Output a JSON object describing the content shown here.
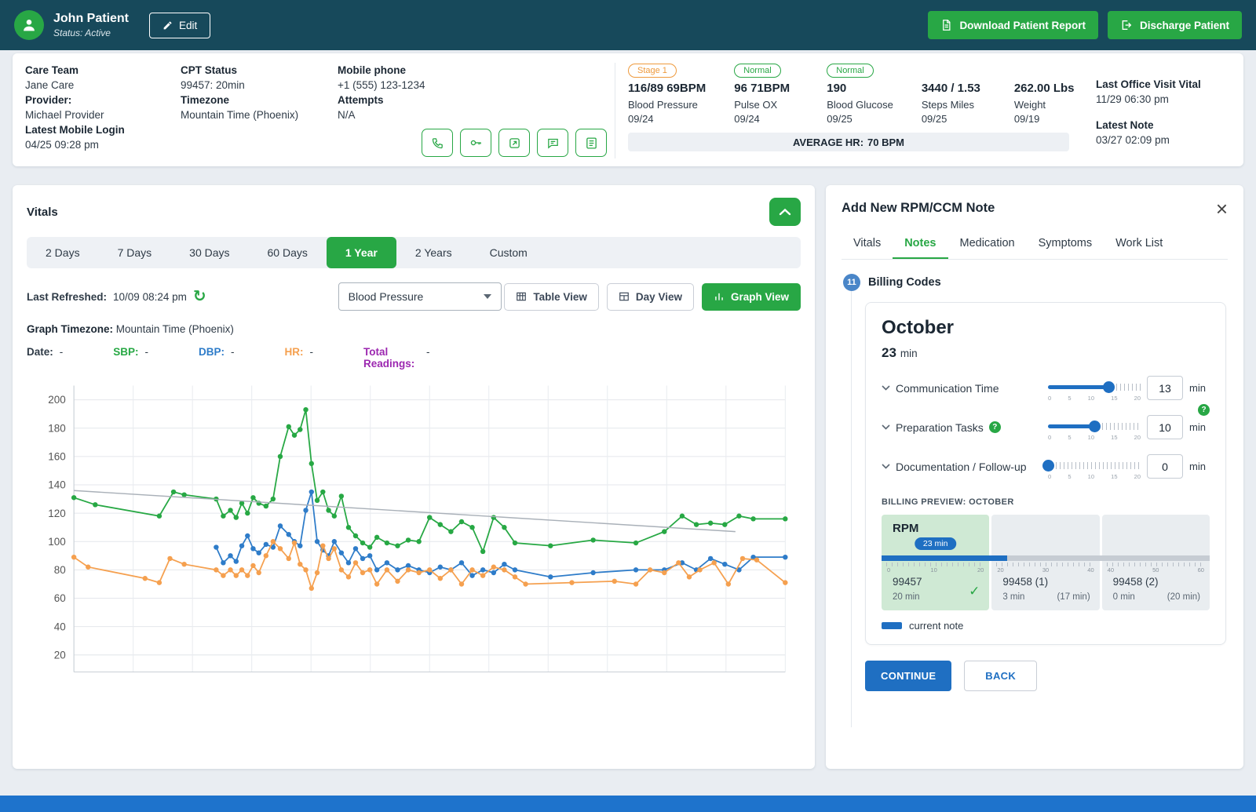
{
  "colors": {
    "header_bg": "#17495b",
    "green": "#28a745",
    "blue": "#1f6fc2",
    "orange": "#ee9a3d",
    "purple": "#9c27b0",
    "footer_blue": "#1e73cc",
    "page_bg": "#e9edf2",
    "chart_green": "#27a844",
    "chart_blue": "#2e7cc9",
    "chart_orange": "#f5a04f",
    "trend_gray": "#a9b0b8"
  },
  "icons": {
    "toolbar": [
      "phone-icon",
      "key-icon",
      "share-icon",
      "chat-icon",
      "list-icon"
    ],
    "header": [
      "person-icon",
      "pencil-icon",
      "document-icon",
      "exit-icon"
    ],
    "misc": [
      "refresh-icon",
      "chevron-up-icon",
      "chevron-down-icon",
      "table-icon",
      "bar-chart-icon",
      "close-icon",
      "question-icon",
      "check-icon"
    ]
  },
  "header": {
    "patient_name": "John Patient",
    "status": "Status: Active",
    "edit_label": "Edit",
    "download_report_label": "Download Patient Report",
    "discharge_label": "Discharge Patient"
  },
  "info": {
    "care_team_label": "Care Team",
    "care_team": "Jane Care",
    "provider_label": "Provider:",
    "provider": "Michael Provider",
    "latest_mobile_login_label": "Latest Mobile Login",
    "latest_mobile_login": "04/25 09:28 pm",
    "cpt_status_label": "CPT Status",
    "cpt_status": "99457: 20min",
    "timezone_label": "Timezone",
    "timezone": "Mountain Time (Phoenix)",
    "mobile_phone_label": "Mobile phone",
    "mobile_phone": "+1 (555) 123-1234",
    "attempts_label": "Attempts",
    "attempts": "N/A"
  },
  "vitals_summary": {
    "items": [
      {
        "badge": "Stage 1",
        "value": "116/89 69BPM",
        "label": "Blood Pressure",
        "date": "09/24"
      },
      {
        "badge": "Normal",
        "value": "96 71BPM",
        "label": "Pulse OX",
        "date": "09/24"
      },
      {
        "badge": "Normal",
        "value": "190",
        "label": "Blood Glucose",
        "date": "09/25"
      },
      {
        "badge": "",
        "value": "3440 / 1.53",
        "label": "Steps Miles",
        "date": "09/25"
      },
      {
        "badge": "",
        "value": "262.00 Lbs",
        "label": "Weight",
        "date": "09/19"
      }
    ],
    "average_hr_label": "AVERAGE HR:",
    "average_hr_value": "70 BPM",
    "last_office_visit_label": "Last Office Visit Vital",
    "last_office_visit": "11/29 06:30 pm",
    "latest_note_label": "Latest Note",
    "latest_note": "03/27 02:09 pm"
  },
  "vitals_card": {
    "title": "Vitals",
    "range_tabs": [
      {
        "label": "2 Days"
      },
      {
        "label": "7 Days"
      },
      {
        "label": "30 Days"
      },
      {
        "label": "60 Days"
      },
      {
        "label": "1 Year",
        "active": true
      },
      {
        "label": "2 Years"
      },
      {
        "label": "Custom"
      }
    ],
    "last_refreshed_label": "Last Refreshed:",
    "last_refreshed": "10/09 08:24 pm",
    "metric_select": "Blood Pressure",
    "view_buttons": [
      {
        "label": "Table View"
      },
      {
        "label": "Day View"
      },
      {
        "label": "Graph View",
        "active": true
      }
    ],
    "graph_timezone_label": "Graph Timezone:",
    "graph_timezone": "Mountain Time (Phoenix)",
    "legend": [
      {
        "label": "Date:",
        "value": "-"
      },
      {
        "label": "SBP:",
        "value": "-"
      },
      {
        "label": "DBP:",
        "value": "-"
      },
      {
        "label": "HR:",
        "value": "-"
      },
      {
        "label": "Total Readings:",
        "value": "-"
      }
    ]
  },
  "chart_data": {
    "type": "line",
    "title": "Blood Pressure vitals over 1 year",
    "xlabel": "",
    "ylabel": "",
    "ylim": [
      8,
      210
    ],
    "yticks": [
      20,
      40,
      60,
      80,
      100,
      120,
      140,
      160,
      180,
      200
    ],
    "xlim": [
      0,
      100
    ],
    "grid": true,
    "legend_position": "top",
    "series": [
      {
        "name": "SBP",
        "color": "#27a844",
        "markers": true,
        "points": [
          [
            0,
            131
          ],
          [
            3,
            126
          ],
          [
            12,
            118
          ],
          [
            14,
            135
          ],
          [
            15.5,
            133
          ],
          [
            20,
            130
          ],
          [
            21,
            118
          ],
          [
            22,
            122
          ],
          [
            22.8,
            117
          ],
          [
            23.6,
            127
          ],
          [
            24.4,
            120
          ],
          [
            25.2,
            131
          ],
          [
            26,
            127
          ],
          [
            27,
            125
          ],
          [
            28,
            130
          ],
          [
            29,
            160
          ],
          [
            30.2,
            181
          ],
          [
            31,
            175
          ],
          [
            31.8,
            179
          ],
          [
            32.6,
            193
          ],
          [
            33.4,
            155
          ],
          [
            34.2,
            129
          ],
          [
            35,
            135
          ],
          [
            35.8,
            122
          ],
          [
            36.6,
            118
          ],
          [
            37.6,
            132
          ],
          [
            38.6,
            110
          ],
          [
            39.6,
            104
          ],
          [
            40.6,
            99
          ],
          [
            41.6,
            96
          ],
          [
            42.6,
            103
          ],
          [
            44,
            99
          ],
          [
            45.5,
            97
          ],
          [
            47,
            101
          ],
          [
            48.5,
            100
          ],
          [
            50,
            117
          ],
          [
            51.5,
            112
          ],
          [
            53,
            107
          ],
          [
            54.5,
            114
          ],
          [
            56,
            110
          ],
          [
            57.5,
            93
          ],
          [
            59,
            117
          ],
          [
            60.5,
            110
          ],
          [
            62,
            99
          ],
          [
            67,
            97
          ],
          [
            73,
            101
          ],
          [
            79,
            99
          ],
          [
            83,
            107
          ],
          [
            85.5,
            118
          ],
          [
            87.5,
            112
          ],
          [
            89.5,
            113
          ],
          [
            91.5,
            112
          ],
          [
            93.5,
            118
          ],
          [
            95.5,
            116
          ],
          [
            100,
            116
          ]
        ]
      },
      {
        "name": "DBP",
        "color": "#2e7cc9",
        "markers": true,
        "points": [
          [
            20,
            96
          ],
          [
            21,
            85
          ],
          [
            22,
            90
          ],
          [
            22.8,
            86
          ],
          [
            23.6,
            97
          ],
          [
            24.4,
            104
          ],
          [
            25.2,
            95
          ],
          [
            26,
            92
          ],
          [
            27,
            98
          ],
          [
            28,
            96
          ],
          [
            29,
            111
          ],
          [
            30.2,
            105
          ],
          [
            31,
            100
          ],
          [
            31.8,
            97
          ],
          [
            32.6,
            122
          ],
          [
            33.4,
            135
          ],
          [
            34.2,
            100
          ],
          [
            35,
            94
          ],
          [
            35.8,
            90
          ],
          [
            36.6,
            100
          ],
          [
            37.6,
            92
          ],
          [
            38.6,
            85
          ],
          [
            39.6,
            95
          ],
          [
            40.6,
            88
          ],
          [
            41.6,
            90
          ],
          [
            42.6,
            80
          ],
          [
            44,
            85
          ],
          [
            45.5,
            80
          ],
          [
            47,
            83
          ],
          [
            48.5,
            80
          ],
          [
            50,
            78
          ],
          [
            51.5,
            82
          ],
          [
            53,
            80
          ],
          [
            54.5,
            85
          ],
          [
            56,
            76
          ],
          [
            57.5,
            80
          ],
          [
            59,
            78
          ],
          [
            60.5,
            84
          ],
          [
            62,
            80
          ],
          [
            67,
            75
          ],
          [
            73,
            78
          ],
          [
            79,
            80
          ],
          [
            83,
            80
          ],
          [
            85.5,
            85
          ],
          [
            87.5,
            80
          ],
          [
            89.5,
            88
          ],
          [
            91.5,
            84
          ],
          [
            93.5,
            80
          ],
          [
            95.5,
            89
          ],
          [
            100,
            89
          ]
        ]
      },
      {
        "name": "HR",
        "color": "#f5a04f",
        "markers": true,
        "points": [
          [
            0,
            89
          ],
          [
            2,
            82
          ],
          [
            10,
            74
          ],
          [
            12,
            71
          ],
          [
            13.5,
            88
          ],
          [
            15.5,
            84
          ],
          [
            20,
            80
          ],
          [
            21,
            76
          ],
          [
            22,
            80
          ],
          [
            22.8,
            76
          ],
          [
            23.6,
            80
          ],
          [
            24.4,
            76
          ],
          [
            25.2,
            83
          ],
          [
            26,
            78
          ],
          [
            27,
            90
          ],
          [
            28,
            100
          ],
          [
            29,
            95
          ],
          [
            30.2,
            88
          ],
          [
            31,
            99
          ],
          [
            31.8,
            84
          ],
          [
            32.6,
            80
          ],
          [
            33.4,
            67
          ],
          [
            34.2,
            78
          ],
          [
            35,
            97
          ],
          [
            35.8,
            88
          ],
          [
            36.6,
            95
          ],
          [
            37.6,
            80
          ],
          [
            38.6,
            75
          ],
          [
            39.6,
            85
          ],
          [
            40.6,
            78
          ],
          [
            41.6,
            80
          ],
          [
            42.6,
            70
          ],
          [
            44,
            80
          ],
          [
            45.5,
            72
          ],
          [
            47,
            80
          ],
          [
            48.5,
            78
          ],
          [
            50,
            80
          ],
          [
            51.5,
            74
          ],
          [
            53,
            80
          ],
          [
            54.5,
            70
          ],
          [
            56,
            80
          ],
          [
            57.5,
            76
          ],
          [
            59,
            82
          ],
          [
            60.5,
            80
          ],
          [
            62,
            75
          ],
          [
            63.5,
            70
          ],
          [
            70,
            71
          ],
          [
            76,
            72
          ],
          [
            79,
            70
          ],
          [
            81,
            80
          ],
          [
            83,
            78
          ],
          [
            85,
            85
          ],
          [
            86.5,
            75
          ],
          [
            88,
            80
          ],
          [
            90,
            85
          ],
          [
            92,
            70
          ],
          [
            94,
            88
          ],
          [
            96,
            87
          ],
          [
            100,
            71
          ]
        ]
      },
      {
        "name": "Trend",
        "color": "#a9b0b8",
        "markers": false,
        "width": 1.4,
        "points": [
          [
            0,
            136
          ],
          [
            93,
            107
          ]
        ]
      }
    ]
  },
  "note_panel": {
    "title": "Add New RPM/CCM Note",
    "tabs": [
      {
        "label": "Vitals"
      },
      {
        "label": "Notes",
        "active": true
      },
      {
        "label": "Medication"
      },
      {
        "label": "Symptoms"
      },
      {
        "label": "Work List"
      }
    ],
    "step_number": "11",
    "section_title": "Billing Codes",
    "month": "October",
    "total_min": "23",
    "total_min_unit": "min",
    "timers": [
      {
        "label": "Communication Time",
        "value": "13",
        "unit": "min",
        "max": 20,
        "ticks": [
          "0",
          "5",
          "10",
          "15",
          "20"
        ]
      },
      {
        "label": "Preparation Tasks",
        "value": "10",
        "unit": "min",
        "max": 20,
        "ticks": [
          "0",
          "5",
          "10",
          "15",
          "20"
        ]
      },
      {
        "label": "Documentation / Follow-up",
        "value": "0",
        "unit": "min",
        "max": 20,
        "ticks": [
          "0",
          "5",
          "10",
          "15",
          "20"
        ]
      }
    ],
    "billing_preview_label": "BILLING PREVIEW: OCTOBER",
    "billing": {
      "rpm_label": "RPM",
      "minutes_pill": "23 min",
      "progress_min": 23,
      "scale_max": 60,
      "segments": [
        {
          "code": "99457",
          "time": "20 min",
          "extra": "",
          "checked": true,
          "ticks": [
            "0",
            "10",
            "20"
          ]
        },
        {
          "code": "99458 (1)",
          "time": "3 min",
          "extra": "(17 min)",
          "ticks": [
            "20",
            "30",
            "40"
          ]
        },
        {
          "code": "99458 (2)",
          "time": "0 min",
          "extra": "(20 min)",
          "ticks": [
            "40",
            "50",
            "60"
          ]
        }
      ]
    },
    "legend_current_note": "current note",
    "continue_label": "CONTINUE",
    "back_label": "BACK"
  }
}
